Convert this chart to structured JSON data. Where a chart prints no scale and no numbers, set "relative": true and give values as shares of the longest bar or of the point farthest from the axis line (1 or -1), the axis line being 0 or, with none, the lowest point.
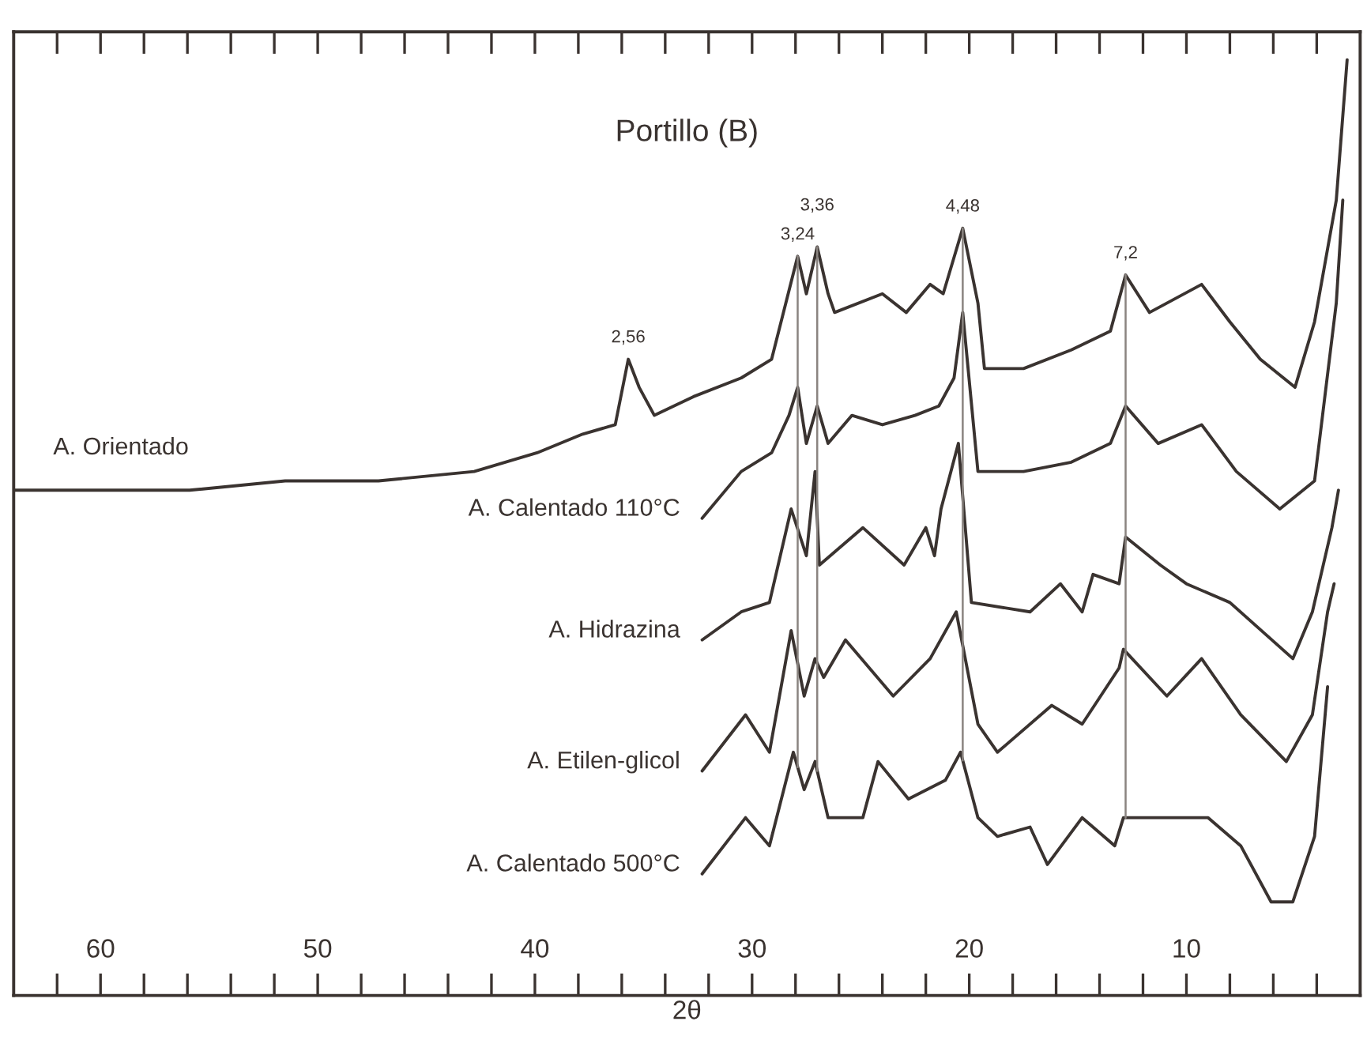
{
  "chart_data": {
    "type": "line",
    "title": "Portillo (B)",
    "xlabel": "2θ",
    "relative": true,
    "legend": false,
    "grid": false,
    "marker": "none",
    "line_style": "solid",
    "xlim": [
      64,
      2
    ],
    "xticks": [
      {
        "value": 62,
        "label": null
      },
      60,
      {
        "value": 58,
        "label": null
      },
      {
        "value": 56,
        "label": null
      },
      {
        "value": 54,
        "label": null
      },
      {
        "value": 52,
        "label": null
      },
      50,
      {
        "value": 48,
        "label": null
      },
      {
        "value": 46,
        "label": null
      },
      {
        "value": 44,
        "label": null
      },
      {
        "value": 42,
        "label": null
      },
      40,
      {
        "value": 38,
        "label": null
      },
      {
        "value": 36,
        "label": null
      },
      {
        "value": 34,
        "label": null
      },
      {
        "value": 32,
        "label": null
      },
      30,
      {
        "value": 28,
        "label": null
      },
      {
        "value": 26,
        "label": null
      },
      {
        "value": 24,
        "label": null
      },
      {
        "value": 22,
        "label": null
      },
      20,
      {
        "value": 18,
        "label": null
      },
      {
        "value": 16,
        "label": null
      },
      {
        "value": 14,
        "label": null
      },
      {
        "value": 12,
        "label": null
      },
      10,
      {
        "value": 8,
        "label": null
      },
      {
        "value": 6,
        "label": null
      },
      {
        "value": 4,
        "label": null
      }
    ],
    "series": [
      {
        "name": "A. Orientado",
        "color": "#3a3330",
        "x": [
          64.0,
          60.2,
          55.9,
          51.5,
          47.2,
          42.8,
          39.9,
          37.8,
          36.3,
          35.7,
          35.2,
          34.5,
          32.7,
          30.5,
          29.1,
          27.9,
          27.5,
          27.0,
          26.5,
          26.2,
          24.0,
          22.9,
          21.8,
          21.2,
          20.3,
          19.6,
          19.3,
          17.5,
          15.3,
          13.5,
          12.8,
          11.7,
          9.3,
          8.0,
          6.6,
          5.0,
          4.1,
          3.1,
          2.6
        ],
        "values": [
          0.54,
          0.54,
          0.54,
          0.55,
          0.55,
          0.56,
          0.58,
          0.6,
          0.61,
          0.68,
          0.65,
          0.62,
          0.64,
          0.66,
          0.68,
          0.79,
          0.75,
          0.8,
          0.75,
          0.73,
          0.75,
          0.73,
          0.76,
          0.75,
          0.82,
          0.74,
          0.67,
          0.67,
          0.69,
          0.71,
          0.77,
          0.73,
          0.76,
          0.72,
          0.68,
          0.65,
          0.72,
          0.85,
          1.0
        ]
      },
      {
        "name": "A. Calentado 110°C",
        "color": "#3a3330",
        "x": [
          32.3,
          30.5,
          29.1,
          28.3,
          27.9,
          27.5,
          27.0,
          26.5,
          25.4,
          24.0,
          22.5,
          21.4,
          20.7,
          20.3,
          19.6,
          17.5,
          15.3,
          13.5,
          12.8,
          11.3,
          9.3,
          7.7,
          5.7,
          4.1,
          3.1,
          2.8
        ],
        "values": [
          0.51,
          0.56,
          0.58,
          0.62,
          0.65,
          0.59,
          0.63,
          0.59,
          0.62,
          0.61,
          0.62,
          0.63,
          0.66,
          0.73,
          0.56,
          0.56,
          0.57,
          0.59,
          0.63,
          0.59,
          0.61,
          0.56,
          0.52,
          0.55,
          0.74,
          0.85
        ]
      },
      {
        "name": "A. Hidrazina",
        "color": "#3a3330",
        "x": [
          32.3,
          30.5,
          29.2,
          28.2,
          27.5,
          27.1,
          26.9,
          24.9,
          23.0,
          22.0,
          21.6,
          21.3,
          20.5,
          19.9,
          17.2,
          15.8,
          14.8,
          14.3,
          13.1,
          12.8,
          11.2,
          10.0,
          8.0,
          5.1,
          4.2,
          3.3,
          3.0
        ],
        "values": [
          0.38,
          0.41,
          0.42,
          0.52,
          0.47,
          0.56,
          0.46,
          0.5,
          0.46,
          0.5,
          0.47,
          0.52,
          0.59,
          0.42,
          0.41,
          0.44,
          0.41,
          0.45,
          0.44,
          0.49,
          0.46,
          0.44,
          0.42,
          0.36,
          0.41,
          0.5,
          0.54
        ]
      },
      {
        "name": "A. Etilen-glicol",
        "color": "#3a3330",
        "x": [
          32.3,
          30.3,
          29.2,
          28.2,
          27.6,
          27.1,
          26.7,
          25.7,
          23.5,
          21.8,
          20.6,
          19.6,
          18.7,
          16.2,
          14.8,
          13.1,
          12.9,
          10.9,
          9.3,
          7.5,
          5.4,
          4.2,
          3.5,
          3.2
        ],
        "values": [
          0.24,
          0.3,
          0.26,
          0.39,
          0.32,
          0.36,
          0.34,
          0.38,
          0.32,
          0.36,
          0.41,
          0.29,
          0.26,
          0.31,
          0.29,
          0.35,
          0.37,
          0.32,
          0.36,
          0.3,
          0.25,
          0.3,
          0.41,
          0.44
        ]
      },
      {
        "name": "A. Calentado 500°C",
        "color": "#3a3330",
        "x": [
          32.3,
          30.3,
          29.2,
          28.1,
          27.6,
          27.1,
          26.5,
          24.9,
          24.2,
          22.8,
          21.1,
          20.4,
          19.6,
          18.7,
          17.2,
          16.4,
          14.8,
          13.3,
          12.9,
          10.9,
          9.0,
          7.5,
          6.1,
          5.1,
          4.1,
          3.5
        ],
        "values": [
          0.13,
          0.19,
          0.16,
          0.26,
          0.22,
          0.25,
          0.19,
          0.19,
          0.25,
          0.21,
          0.23,
          0.26,
          0.19,
          0.17,
          0.18,
          0.14,
          0.19,
          0.16,
          0.19,
          0.19,
          0.19,
          0.16,
          0.1,
          0.1,
          0.17,
          0.33
        ]
      }
    ],
    "ref_lines": [
      {
        "axis": "x",
        "value": 27.9,
        "color": "#8a8480"
      },
      {
        "axis": "x",
        "value": 27.0,
        "color": "#8a8480"
      },
      {
        "axis": "x",
        "value": 20.3,
        "color": "#8a8480"
      },
      {
        "axis": "x",
        "value": 12.8,
        "color": "#8a8480"
      }
    ],
    "annotations": [
      {
        "text": "2,56",
        "x": 35.7,
        "y": 0.68
      },
      {
        "text": "3,24",
        "x": 27.9,
        "y": 0.79
      },
      {
        "text": "3,36",
        "x": 27.0,
        "y": 0.8
      },
      {
        "text": "4,48",
        "x": 20.3,
        "y": 0.82
      },
      {
        "text": "7,2",
        "x": 12.8,
        "y": 0.77
      }
    ]
  }
}
